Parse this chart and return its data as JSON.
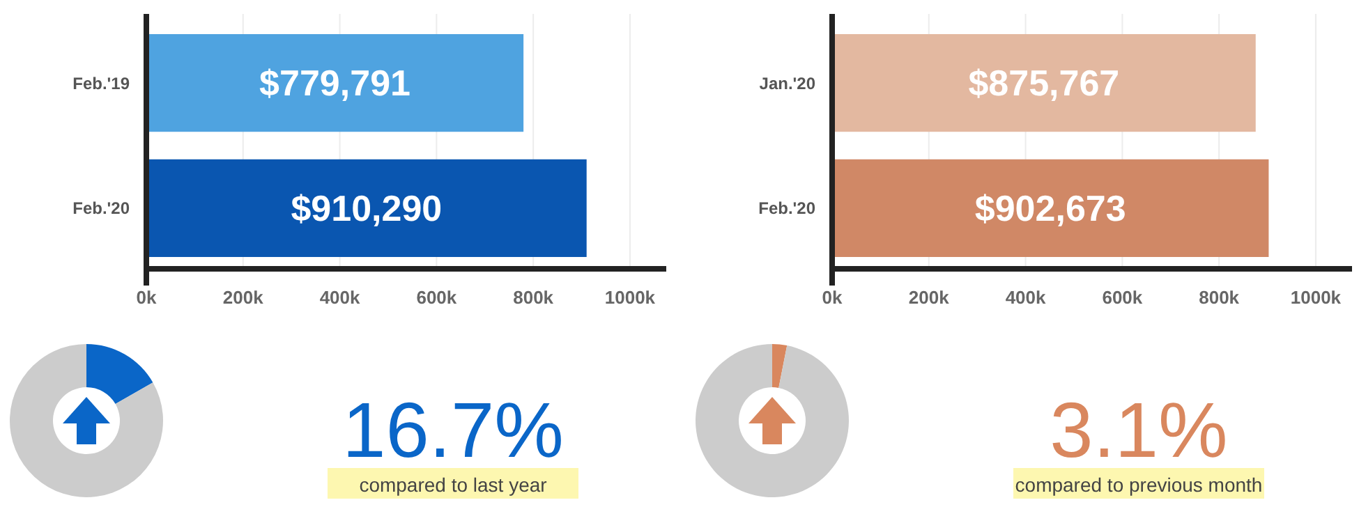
{
  "chart_data": [
    {
      "type": "bar",
      "orientation": "horizontal",
      "categories": [
        "Feb.'19",
        "Feb.'20"
      ],
      "values": [
        779791,
        910290
      ],
      "colors": [
        "#4fa3e0",
        "#0a56b0"
      ],
      "value_labels": [
        "$779,791",
        "$910,290"
      ],
      "xlim": [
        0,
        1075000
      ],
      "xticks": [
        {
          "value": 0,
          "label": "0k"
        },
        {
          "value": 200000,
          "label": "200k"
        },
        {
          "value": 400000,
          "label": "400k"
        },
        {
          "value": 600000,
          "label": "600k"
        },
        {
          "value": 800000,
          "label": "800k"
        },
        {
          "value": 1000000,
          "label": "1000k"
        }
      ],
      "grid": "x"
    },
    {
      "type": "bar",
      "orientation": "horizontal",
      "categories": [
        "Jan.'20",
        "Feb.'20"
      ],
      "values": [
        875767,
        902673
      ],
      "colors": [
        "#e3b8a0",
        "#d08866"
      ],
      "value_labels": [
        "$875,767",
        "$902,673"
      ],
      "xlim": [
        0,
        1075000
      ],
      "xticks": [
        {
          "value": 0,
          "label": "0k"
        },
        {
          "value": 200000,
          "label": "200k"
        },
        {
          "value": 400000,
          "label": "400k"
        },
        {
          "value": 600000,
          "label": "600k"
        },
        {
          "value": 800000,
          "label": "800k"
        },
        {
          "value": 1000000,
          "label": "1000k"
        }
      ],
      "grid": "x"
    },
    {
      "type": "donut",
      "categories": [
        null,
        null
      ],
      "values": [
        16.7,
        83.3
      ],
      "colors": [
        "#0a66c8",
        "#cccccc"
      ],
      "annotations": [
        "16.7%",
        "compared to last year"
      ]
    },
    {
      "type": "donut",
      "categories": [
        null,
        null
      ],
      "values": [
        3.1,
        96.9
      ],
      "colors": [
        "#d9875e",
        "#cccccc"
      ],
      "annotations": [
        "3.1%",
        "compared to previous month"
      ]
    }
  ]
}
